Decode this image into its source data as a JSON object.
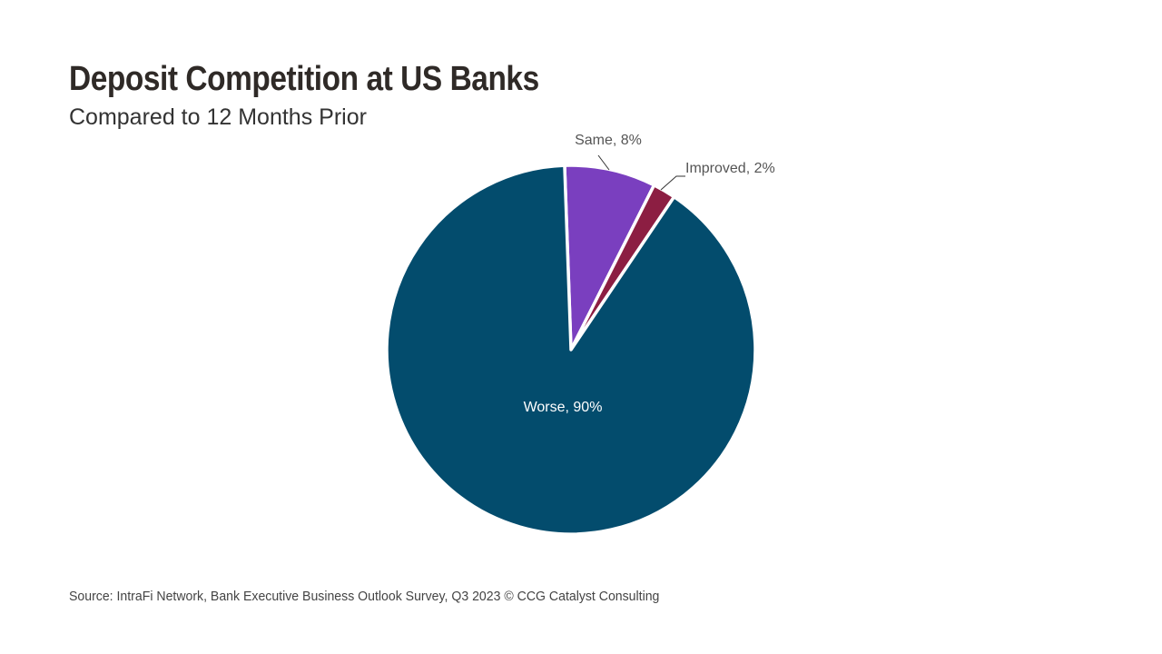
{
  "header": {
    "title": "Deposit Competition at US Banks",
    "subtitle": "Compared to 12 Months Prior"
  },
  "footer": {
    "source": "Source: IntraFi Network, Bank Executive Business Outlook Survey, Q3 2023 © CCG Catalyst Consulting"
  },
  "chart_data": {
    "type": "pie",
    "title": "Deposit Competition at US Banks",
    "subtitle": "Compared to 12 Months Prior",
    "slices": [
      {
        "name": "Same",
        "value": 8,
        "label": "Same, 8%",
        "color": "#7a3fbf"
      },
      {
        "name": "Improved",
        "value": 2,
        "label": "Improved, 2%",
        "color": "#8c1e42"
      },
      {
        "name": "Worse",
        "value": 90,
        "label": "Worse, 90%",
        "color": "#034c6d"
      }
    ],
    "label_color_outside": "#555555",
    "label_color_inside": "#ffffff"
  }
}
